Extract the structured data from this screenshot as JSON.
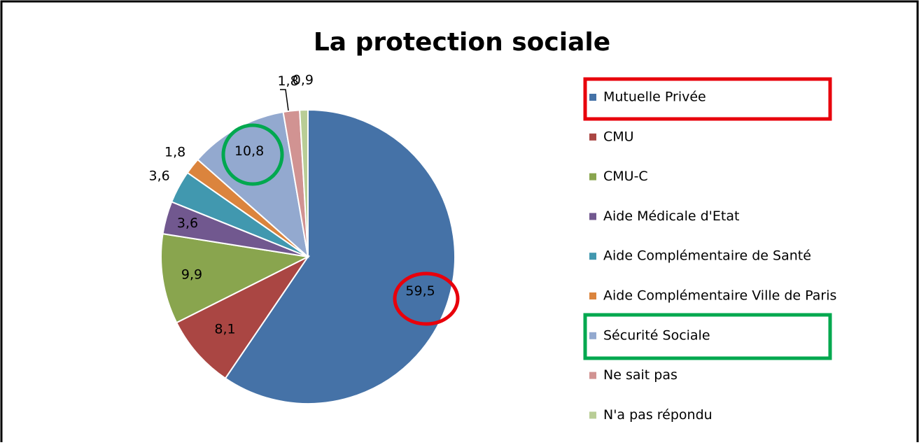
{
  "chart_data": {
    "type": "pie",
    "title": "La protection sociale",
    "categories": [
      "Mutuelle Privée",
      "CMU",
      "CMU-C",
      "Aide Médicale d'Etat",
      "Aide Complémentaire de Santé",
      "Aide Complémentaire Ville de Paris",
      "Sécurité Sociale",
      "Ne sait pas",
      "N'a pas répondu"
    ],
    "values": [
      59.5,
      8.1,
      9.9,
      3.6,
      3.6,
      1.8,
      10.8,
      1.8,
      0.9
    ],
    "value_labels": [
      "59,5",
      "8,1",
      "9,9",
      "3,6",
      "3,6",
      "1,8",
      "10,8",
      "1,8",
      "0,9"
    ],
    "colors": [
      "#4572a7",
      "#aa4643",
      "#89a54e",
      "#71588f",
      "#4198af",
      "#db843d",
      "#93a9cf",
      "#d19392",
      "#b9cd96"
    ],
    "legend": "right"
  }
}
